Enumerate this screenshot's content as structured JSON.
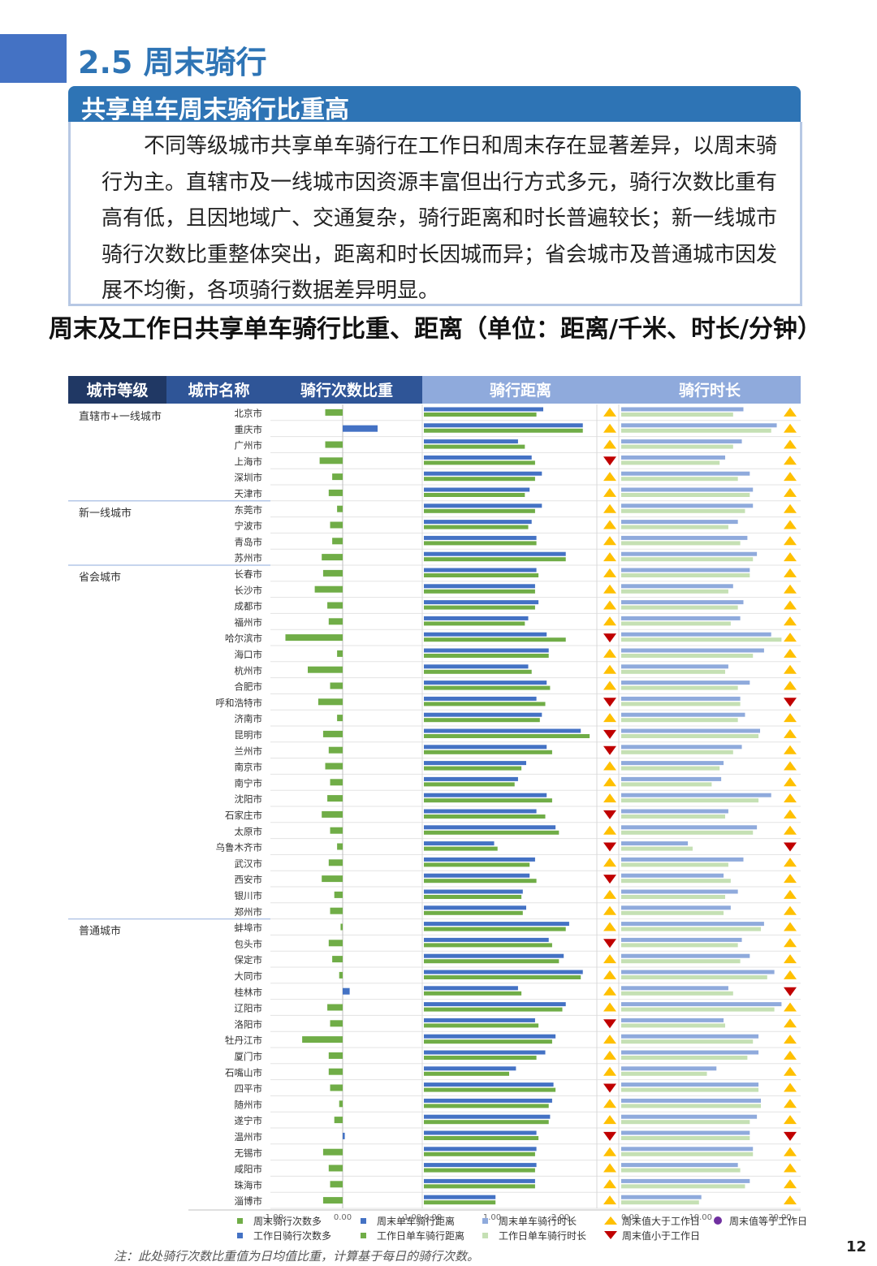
{
  "section": {
    "title": "2.5 周末骑行",
    "subtitle": "共享单车周末骑行比重高"
  },
  "intro": "不同等级城市共享单车骑行在工作日和周末存在显著差异，以周末骑行为主。直辖市及一线城市因资源丰富但出行方式多元，骑行次数比重有高有低，且因地域广、交通复杂，骑行距离和时长普遍较长；新一线城市骑行次数比重整体突出，距离和时长因城而异；省会城市及普通城市因发展不均衡，各项骑行数据差异明显。",
  "chart_title": "周末及工作日共享单车骑行比重、距离（单位：距离/千米、时长/分钟）",
  "note": "注：此处骑行次数比重值为日均值比重，计算基于每日的骑行次数。",
  "page_number": "12",
  "colors": {
    "header_dark": "#203864",
    "header_mid": "#2f5597",
    "header_light": "#8faadc",
    "weekend_bar": "#4472c4",
    "weekend_light": "#8faadc",
    "workday_bar": "#70ad47",
    "workday_light": "#c5e0b4",
    "up": "#ffc000",
    "down": "#c00000",
    "equal": "#7030a0"
  },
  "chart_data": {
    "type": "bar",
    "column_headers": [
      "城市等级",
      "城市名称",
      "骑行次数比重",
      "骑行距离",
      "骑行时长"
    ],
    "groups": [
      {
        "name": "直辖市+一线城市",
        "start": 0,
        "count": 6
      },
      {
        "name": "新一线城市",
        "start": 6,
        "count": 4
      },
      {
        "name": "省会城市",
        "start": 10,
        "count": 22
      },
      {
        "name": "普通城市",
        "start": 32,
        "count": 18
      }
    ],
    "cities": [
      "北京市",
      "重庆市",
      "广州市",
      "上海市",
      "深圳市",
      "天津市",
      "东莞市",
      "宁波市",
      "青岛市",
      "苏州市",
      "长春市",
      "长沙市",
      "成都市",
      "福州市",
      "哈尔滨市",
      "海口市",
      "杭州市",
      "合肥市",
      "呼和浩特市",
      "济南市",
      "昆明市",
      "兰州市",
      "南京市",
      "南宁市",
      "沈阳市",
      "石家庄市",
      "太原市",
      "乌鲁木齐市",
      "武汉市",
      "西安市",
      "银川市",
      "郑州市",
      "蚌埠市",
      "包头市",
      "保定市",
      "大同市",
      "桂林市",
      "辽阳市",
      "洛阳市",
      "牡丹江市",
      "厦门市",
      "石嘴山市",
      "四平市",
      "随州市",
      "遂宁市",
      "温州市",
      "无锡市",
      "咸阳市",
      "珠海市",
      "淄博市"
    ],
    "ratio": {
      "axis_ticks": [
        "-1.00",
        "0.00",
        "1.00"
      ],
      "xlim": [
        -1,
        1
      ],
      "weekend": [
        -0.25,
        0,
        -0.25,
        -0.33,
        -0.15,
        -0.2,
        -0.08,
        -0.18,
        -0.15,
        -0.3,
        -0.28,
        -0.4,
        -0.22,
        -0.2,
        -0.82,
        -0.08,
        -0.5,
        -0.18,
        -0.35,
        -0.08,
        -0.28,
        -0.2,
        -0.25,
        -0.18,
        -0.22,
        -0.3,
        -0.18,
        -0.08,
        -0.2,
        -0.3,
        -0.12,
        -0.18,
        -0.03,
        -0.2,
        -0.15,
        -0.05,
        0,
        -0.22,
        -0.18,
        -0.58,
        -0.2,
        -0.2,
        -0.18,
        -0.05,
        -0.12,
        0,
        -0.28,
        -0.2,
        -0.18,
        -0.28
      ],
      "workday": [
        0,
        0.5,
        0,
        0,
        0,
        0,
        0,
        0,
        0,
        0,
        0,
        0,
        0,
        0,
        0,
        0,
        0,
        0,
        0,
        0,
        0,
        0,
        0,
        0,
        0,
        0,
        0,
        0,
        0,
        0,
        0,
        0,
        0,
        0,
        0,
        0,
        0.1,
        0,
        0,
        0,
        0,
        0,
        0,
        0,
        0,
        0.03,
        0,
        0,
        0,
        0
      ]
    },
    "distance": {
      "axis_ticks": [
        "0.00",
        "1.00",
        "2.00"
      ],
      "xlim": [
        0,
        2.5
      ],
      "weekend": [
        1.75,
        2.33,
        1.38,
        1.58,
        1.73,
        1.55,
        1.73,
        1.58,
        1.65,
        2.08,
        1.65,
        1.63,
        1.68,
        1.53,
        1.8,
        1.83,
        1.53,
        1.8,
        1.65,
        1.73,
        2.3,
        1.8,
        1.5,
        1.38,
        1.8,
        1.65,
        1.93,
        1.03,
        1.63,
        1.55,
        1.45,
        1.5,
        2.13,
        1.83,
        2.05,
        2.33,
        1.38,
        2.08,
        1.63,
        1.93,
        1.78,
        1.35,
        1.9,
        1.88,
        1.85,
        1.65,
        1.65,
        1.65,
        1.63,
        1.05
      ],
      "workday": [
        1.65,
        2.33,
        1.48,
        1.63,
        1.63,
        1.48,
        1.63,
        1.53,
        1.65,
        2.08,
        1.68,
        1.63,
        1.63,
        1.48,
        2.08,
        1.83,
        1.58,
        1.85,
        1.78,
        1.7,
        2.43,
        1.88,
        1.43,
        1.33,
        1.88,
        1.78,
        1.98,
        1.08,
        1.55,
        1.65,
        1.43,
        1.45,
        2.08,
        1.88,
        1.98,
        2.3,
        1.43,
        2.03,
        1.68,
        1.88,
        1.65,
        1.25,
        1.93,
        1.83,
        1.83,
        1.68,
        1.63,
        1.63,
        1.63,
        1.05
      ],
      "marks": [
        "up",
        "up",
        "up",
        "down",
        "up",
        "up",
        "up",
        "up",
        "up",
        "up",
        "up",
        "up",
        "up",
        "up",
        "down",
        "up",
        "up",
        "up",
        "down",
        "up",
        "down",
        "down",
        "up",
        "up",
        "up",
        "down",
        "up",
        "down",
        "up",
        "down",
        "up",
        "up",
        "up",
        "down",
        "up",
        "up",
        "up",
        "up",
        "down",
        "up",
        "up",
        "up",
        "down",
        "up",
        "up",
        "down",
        "up",
        "up",
        "up",
        "up"
      ]
    },
    "duration": {
      "axis_ticks": [
        "0.00",
        "10.00",
        "20.00"
      ],
      "xlim": [
        0,
        22
      ],
      "weekend": [
        15.4,
        19.6,
        15.2,
        13.1,
        16.2,
        16.6,
        16.6,
        14.7,
        15.9,
        17.1,
        16.2,
        14.1,
        15.4,
        15.0,
        18.9,
        18.0,
        13.5,
        16.2,
        15.0,
        15.6,
        17.5,
        15.2,
        12.9,
        12.6,
        18.9,
        13.5,
        17.1,
        8.4,
        15.4,
        12.9,
        14.7,
        13.8,
        18.0,
        15.2,
        16.2,
        19.3,
        13.5,
        20.2,
        12.9,
        17.3,
        17.3,
        12.0,
        17.3,
        17.6,
        17.1,
        16.2,
        16.6,
        14.7,
        16.2,
        10.1
      ],
      "workday": [
        14.1,
        18.9,
        14.1,
        12.4,
        14.7,
        16.2,
        15.6,
        13.5,
        15.0,
        16.6,
        16.2,
        13.5,
        14.7,
        13.8,
        20.2,
        16.6,
        13.1,
        14.7,
        15.0,
        14.7,
        17.3,
        14.1,
        12.4,
        11.4,
        17.3,
        13.1,
        16.6,
        9.0,
        13.5,
        13.8,
        13.1,
        12.9,
        17.6,
        14.7,
        15.0,
        18.4,
        14.1,
        19.3,
        13.1,
        16.6,
        15.9,
        10.8,
        17.3,
        17.6,
        16.2,
        16.2,
        16.6,
        15.0,
        15.6,
        9.8
      ],
      "marks": [
        "up",
        "up",
        "up",
        "up",
        "up",
        "up",
        "up",
        "up",
        "up",
        "up",
        "up",
        "up",
        "up",
        "up",
        "up",
        "up",
        "up",
        "up",
        "down",
        "up",
        "up",
        "up",
        "up",
        "up",
        "up",
        "up",
        "up",
        "down",
        "up",
        "up",
        "up",
        "up",
        "up",
        "up",
        "up",
        "up",
        "down",
        "up",
        "up",
        "up",
        "up",
        "up",
        "up",
        "up",
        "up",
        "down",
        "up",
        "up",
        "up",
        "up"
      ]
    },
    "legend": [
      {
        "symbol": "sq-green",
        "label": "周末骑行次数多"
      },
      {
        "symbol": "sq-blue",
        "label": "工作日骑行次数多"
      },
      {
        "symbol": "sq-blue",
        "label": "周末单车骑行距离"
      },
      {
        "symbol": "sq-green",
        "label": "工作日单车骑行距离"
      },
      {
        "symbol": "sq-lightblue",
        "label": "周末单车骑行时长"
      },
      {
        "symbol": "sq-lightgreen",
        "label": "工作日单车骑行时长"
      },
      {
        "symbol": "tri-up",
        "label": "周末值大于工作日"
      },
      {
        "symbol": "tri-down",
        "label": "周末值小于工作日"
      },
      {
        "symbol": "dot-purple",
        "label": "周末值等于工作日"
      }
    ]
  }
}
